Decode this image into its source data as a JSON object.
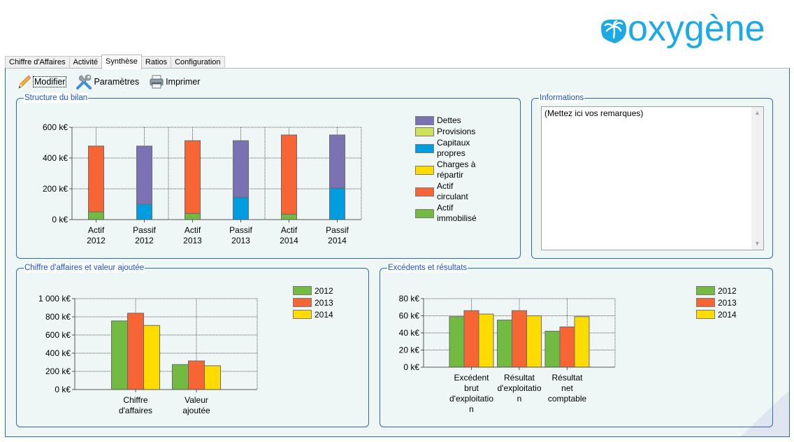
{
  "brand": {
    "name": "oxygène",
    "color": "#1ca9e6"
  },
  "tabs": [
    {
      "label": "Chiffre d'Affaires",
      "active": false
    },
    {
      "label": "Activité",
      "active": false
    },
    {
      "label": "Synthèse",
      "active": true
    },
    {
      "label": "Ratios",
      "active": false
    },
    {
      "label": "Configuration",
      "active": false
    }
  ],
  "toolbar": {
    "modifier": {
      "label": "Modifier",
      "icon": "pencil-icon"
    },
    "parametres": {
      "label": "Paramètres",
      "icon": "tools-icon"
    },
    "imprimer": {
      "label": "Imprimer",
      "icon": "printer-icon"
    }
  },
  "informations": {
    "title": "Informations",
    "text": "(Mettez ici vos remarques)"
  },
  "colors": {
    "dettes": "#7b72b4",
    "provisions": "#cfe05a",
    "capitaux": "#009ee0",
    "charges": "#ffdc00",
    "actif_circulant": "#f66533",
    "actif_immobilise": "#73ba43",
    "y2012": "#73ba43",
    "y2013": "#f66533",
    "y2014": "#ffdc00",
    "group_border": "#2f67b3",
    "group_title": "#1e50c8"
  },
  "chart_data": [
    {
      "id": "structure-bilan",
      "type": "bar",
      "stacked": true,
      "title": "Structure du bilan",
      "categories": [
        "Actif\n2012",
        "Passif\n2012",
        "Actif\n2013",
        "Passif\n2013",
        "Actif\n2014",
        "Passif\n2014"
      ],
      "category_labels": [
        [
          "Actif",
          "2012"
        ],
        [
          "Passif",
          "2012"
        ],
        [
          "Actif",
          "2013"
        ],
        [
          "Passif",
          "2013"
        ],
        [
          "Actif",
          "2014"
        ],
        [
          "Passif",
          "2014"
        ]
      ],
      "series": [
        {
          "name": "Actif immobilisé",
          "legend": "Actif\nimmobilisé",
          "color_key": "actif_immobilise",
          "values": [
            50,
            0,
            40,
            0,
            35,
            0
          ]
        },
        {
          "name": "Actif circulant",
          "legend": "Actif\ncirculant",
          "color_key": "actif_circulant",
          "values": [
            428,
            0,
            473,
            0,
            515,
            0
          ]
        },
        {
          "name": "Charges à répartir",
          "legend": "Charges à\nrépartir",
          "color_key": "charges",
          "values": [
            0,
            0,
            0,
            0,
            0,
            0
          ]
        },
        {
          "name": "Capitaux propres",
          "legend": "Capitaux\npropres",
          "color_key": "capitaux",
          "values": [
            0,
            100,
            0,
            145,
            0,
            205
          ]
        },
        {
          "name": "Provisions",
          "legend": "Provisions",
          "color_key": "provisions",
          "values": [
            0,
            0,
            0,
            0,
            0,
            0
          ]
        },
        {
          "name": "Dettes",
          "legend": "Dettes",
          "color_key": "dettes",
          "values": [
            0,
            378,
            0,
            368,
            0,
            345
          ]
        }
      ],
      "legend_order": [
        "Dettes",
        "Provisions",
        "Capitaux propres",
        "Charges à répartir",
        "Actif circulant",
        "Actif immobilisé"
      ],
      "yticks": [
        "0 k€",
        "200 k€",
        "400 k€",
        "600 k€"
      ],
      "ylim": [
        0,
        600
      ],
      "ystep": 200,
      "xlabel": "",
      "ylabel": "",
      "grid": true,
      "legend_position": "right"
    },
    {
      "id": "ca-va",
      "type": "bar",
      "title": "Chiffre d'affaires et valeur ajoutée",
      "categories": [
        "Chiffre d'affaires",
        "Valeur ajoutée"
      ],
      "category_labels": [
        [
          "Chiffre",
          "d'affaires"
        ],
        [
          "Valeur",
          "ajoutée"
        ]
      ],
      "series": [
        {
          "name": "2012",
          "color_key": "y2012",
          "values": [
            755,
            275
          ]
        },
        {
          "name": "2013",
          "color_key": "y2013",
          "values": [
            840,
            315
          ]
        },
        {
          "name": "2014",
          "color_key": "y2014",
          "values": [
            705,
            262
          ]
        }
      ],
      "yticks": [
        "0 k€",
        "200 k€",
        "400 k€",
        "600 k€",
        "800 k€",
        "1 000 k€"
      ],
      "ylim": [
        0,
        1000
      ],
      "ystep": 200,
      "xlabel": "",
      "ylabel": "",
      "grid": true,
      "legend_position": "top-right"
    },
    {
      "id": "excedents",
      "type": "bar",
      "title": "Excédents et résultats",
      "categories": [
        "Excédent brut d'exploitation",
        "Résultat d'exploitation",
        "Résultat net comptable"
      ],
      "category_labels": [
        [
          "Excédent",
          "brut",
          "d'exploitatio",
          "n"
        ],
        [
          "Résultat",
          "d'exploitatio",
          "n"
        ],
        [
          "Résultat",
          "net",
          "comptable"
        ]
      ],
      "series": [
        {
          "name": "2012",
          "color_key": "y2012",
          "values": [
            59,
            55,
            42
          ]
        },
        {
          "name": "2013",
          "color_key": "y2013",
          "values": [
            66,
            66,
            47
          ]
        },
        {
          "name": "2014",
          "color_key": "y2014",
          "values": [
            62,
            60,
            59
          ]
        }
      ],
      "yticks": [
        "0 k€",
        "20 k€",
        "40 k€",
        "60 k€",
        "80 k€"
      ],
      "ylim": [
        0,
        80
      ],
      "ystep": 20,
      "xlabel": "",
      "ylabel": "",
      "grid": true,
      "legend_position": "top-right"
    }
  ]
}
